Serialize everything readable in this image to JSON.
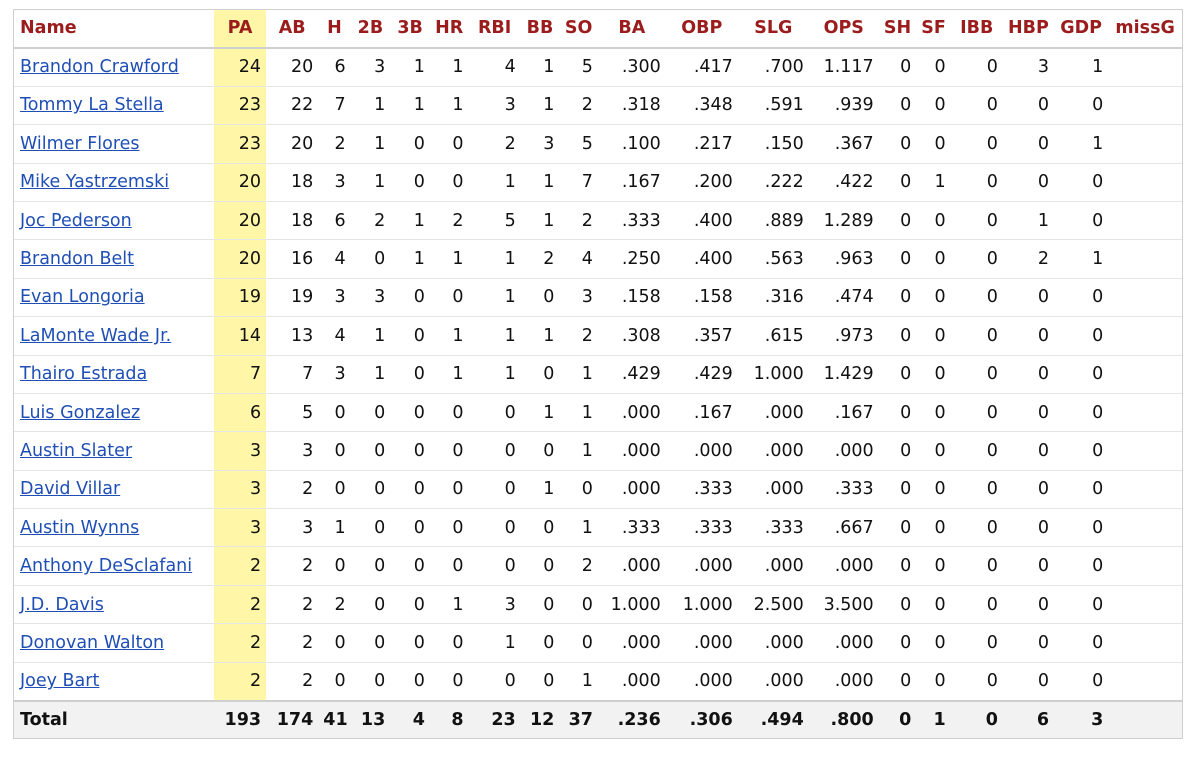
{
  "table": {
    "columns": [
      "Name",
      "PA",
      "AB",
      "H",
      "2B",
      "3B",
      "HR",
      "RBI",
      "BB",
      "SO",
      "BA",
      "OBP",
      "SLG",
      "OPS",
      "SH",
      "SF",
      "IBB",
      "HBP",
      "GDP",
      "missG"
    ],
    "rows": [
      [
        "Brandon Crawford",
        "24",
        "20",
        "6",
        "3",
        "1",
        "1",
        "4",
        "1",
        "5",
        ".300",
        ".417",
        ".700",
        "1.117",
        "0",
        "0",
        "0",
        "3",
        "1",
        ""
      ],
      [
        "Tommy La Stella",
        "23",
        "22",
        "7",
        "1",
        "1",
        "1",
        "3",
        "1",
        "2",
        ".318",
        ".348",
        ".591",
        ".939",
        "0",
        "0",
        "0",
        "0",
        "0",
        ""
      ],
      [
        "Wilmer Flores",
        "23",
        "20",
        "2",
        "1",
        "0",
        "0",
        "2",
        "3",
        "5",
        ".100",
        ".217",
        ".150",
        ".367",
        "0",
        "0",
        "0",
        "0",
        "1",
        ""
      ],
      [
        "Mike Yastrzemski",
        "20",
        "18",
        "3",
        "1",
        "0",
        "0",
        "1",
        "1",
        "7",
        ".167",
        ".200",
        ".222",
        ".422",
        "0",
        "1",
        "0",
        "0",
        "0",
        ""
      ],
      [
        "Joc Pederson",
        "20",
        "18",
        "6",
        "2",
        "1",
        "2",
        "5",
        "1",
        "2",
        ".333",
        ".400",
        ".889",
        "1.289",
        "0",
        "0",
        "0",
        "1",
        "0",
        ""
      ],
      [
        "Brandon Belt",
        "20",
        "16",
        "4",
        "0",
        "1",
        "1",
        "1",
        "2",
        "4",
        ".250",
        ".400",
        ".563",
        ".963",
        "0",
        "0",
        "0",
        "2",
        "1",
        ""
      ],
      [
        "Evan Longoria",
        "19",
        "19",
        "3",
        "3",
        "0",
        "0",
        "1",
        "0",
        "3",
        ".158",
        ".158",
        ".316",
        ".474",
        "0",
        "0",
        "0",
        "0",
        "0",
        ""
      ],
      [
        "LaMonte Wade Jr.",
        "14",
        "13",
        "4",
        "1",
        "0",
        "1",
        "1",
        "1",
        "2",
        ".308",
        ".357",
        ".615",
        ".973",
        "0",
        "0",
        "0",
        "0",
        "0",
        ""
      ],
      [
        "Thairo Estrada",
        "7",
        "7",
        "3",
        "1",
        "0",
        "1",
        "1",
        "0",
        "1",
        ".429",
        ".429",
        "1.000",
        "1.429",
        "0",
        "0",
        "0",
        "0",
        "0",
        ""
      ],
      [
        "Luis Gonzalez",
        "6",
        "5",
        "0",
        "0",
        "0",
        "0",
        "0",
        "1",
        "1",
        ".000",
        ".167",
        ".000",
        ".167",
        "0",
        "0",
        "0",
        "0",
        "0",
        ""
      ],
      [
        "Austin Slater",
        "3",
        "3",
        "0",
        "0",
        "0",
        "0",
        "0",
        "0",
        "1",
        ".000",
        ".000",
        ".000",
        ".000",
        "0",
        "0",
        "0",
        "0",
        "0",
        ""
      ],
      [
        "David Villar",
        "3",
        "2",
        "0",
        "0",
        "0",
        "0",
        "0",
        "1",
        "0",
        ".000",
        ".333",
        ".000",
        ".333",
        "0",
        "0",
        "0",
        "0",
        "0",
        ""
      ],
      [
        "Austin Wynns",
        "3",
        "3",
        "1",
        "0",
        "0",
        "0",
        "0",
        "0",
        "1",
        ".333",
        ".333",
        ".333",
        ".667",
        "0",
        "0",
        "0",
        "0",
        "0",
        ""
      ],
      [
        "Anthony DeSclafani",
        "2",
        "2",
        "0",
        "0",
        "0",
        "0",
        "0",
        "0",
        "2",
        ".000",
        ".000",
        ".000",
        ".000",
        "0",
        "0",
        "0",
        "0",
        "0",
        ""
      ],
      [
        "J.D. Davis",
        "2",
        "2",
        "2",
        "0",
        "0",
        "1",
        "3",
        "0",
        "0",
        "1.000",
        "1.000",
        "2.500",
        "3.500",
        "0",
        "0",
        "0",
        "0",
        "0",
        ""
      ],
      [
        "Donovan Walton",
        "2",
        "2",
        "0",
        "0",
        "0",
        "0",
        "1",
        "0",
        "0",
        ".000",
        ".000",
        ".000",
        ".000",
        "0",
        "0",
        "0",
        "0",
        "0",
        ""
      ],
      [
        "Joey Bart",
        "2",
        "2",
        "0",
        "0",
        "0",
        "0",
        "0",
        "0",
        "1",
        ".000",
        ".000",
        ".000",
        ".000",
        "0",
        "0",
        "0",
        "0",
        "0",
        ""
      ]
    ],
    "total": [
      "Total",
      "193",
      "174",
      "41",
      "13",
      "4",
      "8",
      "23",
      "12",
      "37",
      ".236",
      ".306",
      ".494",
      ".800",
      "0",
      "1",
      "0",
      "6",
      "3",
      ""
    ]
  },
  "colors": {
    "header_text": "#9b1c1c",
    "link": "#1f4fb5",
    "highlight_column": "#fff6a8",
    "total_row_bg": "#f2f2f2"
  }
}
